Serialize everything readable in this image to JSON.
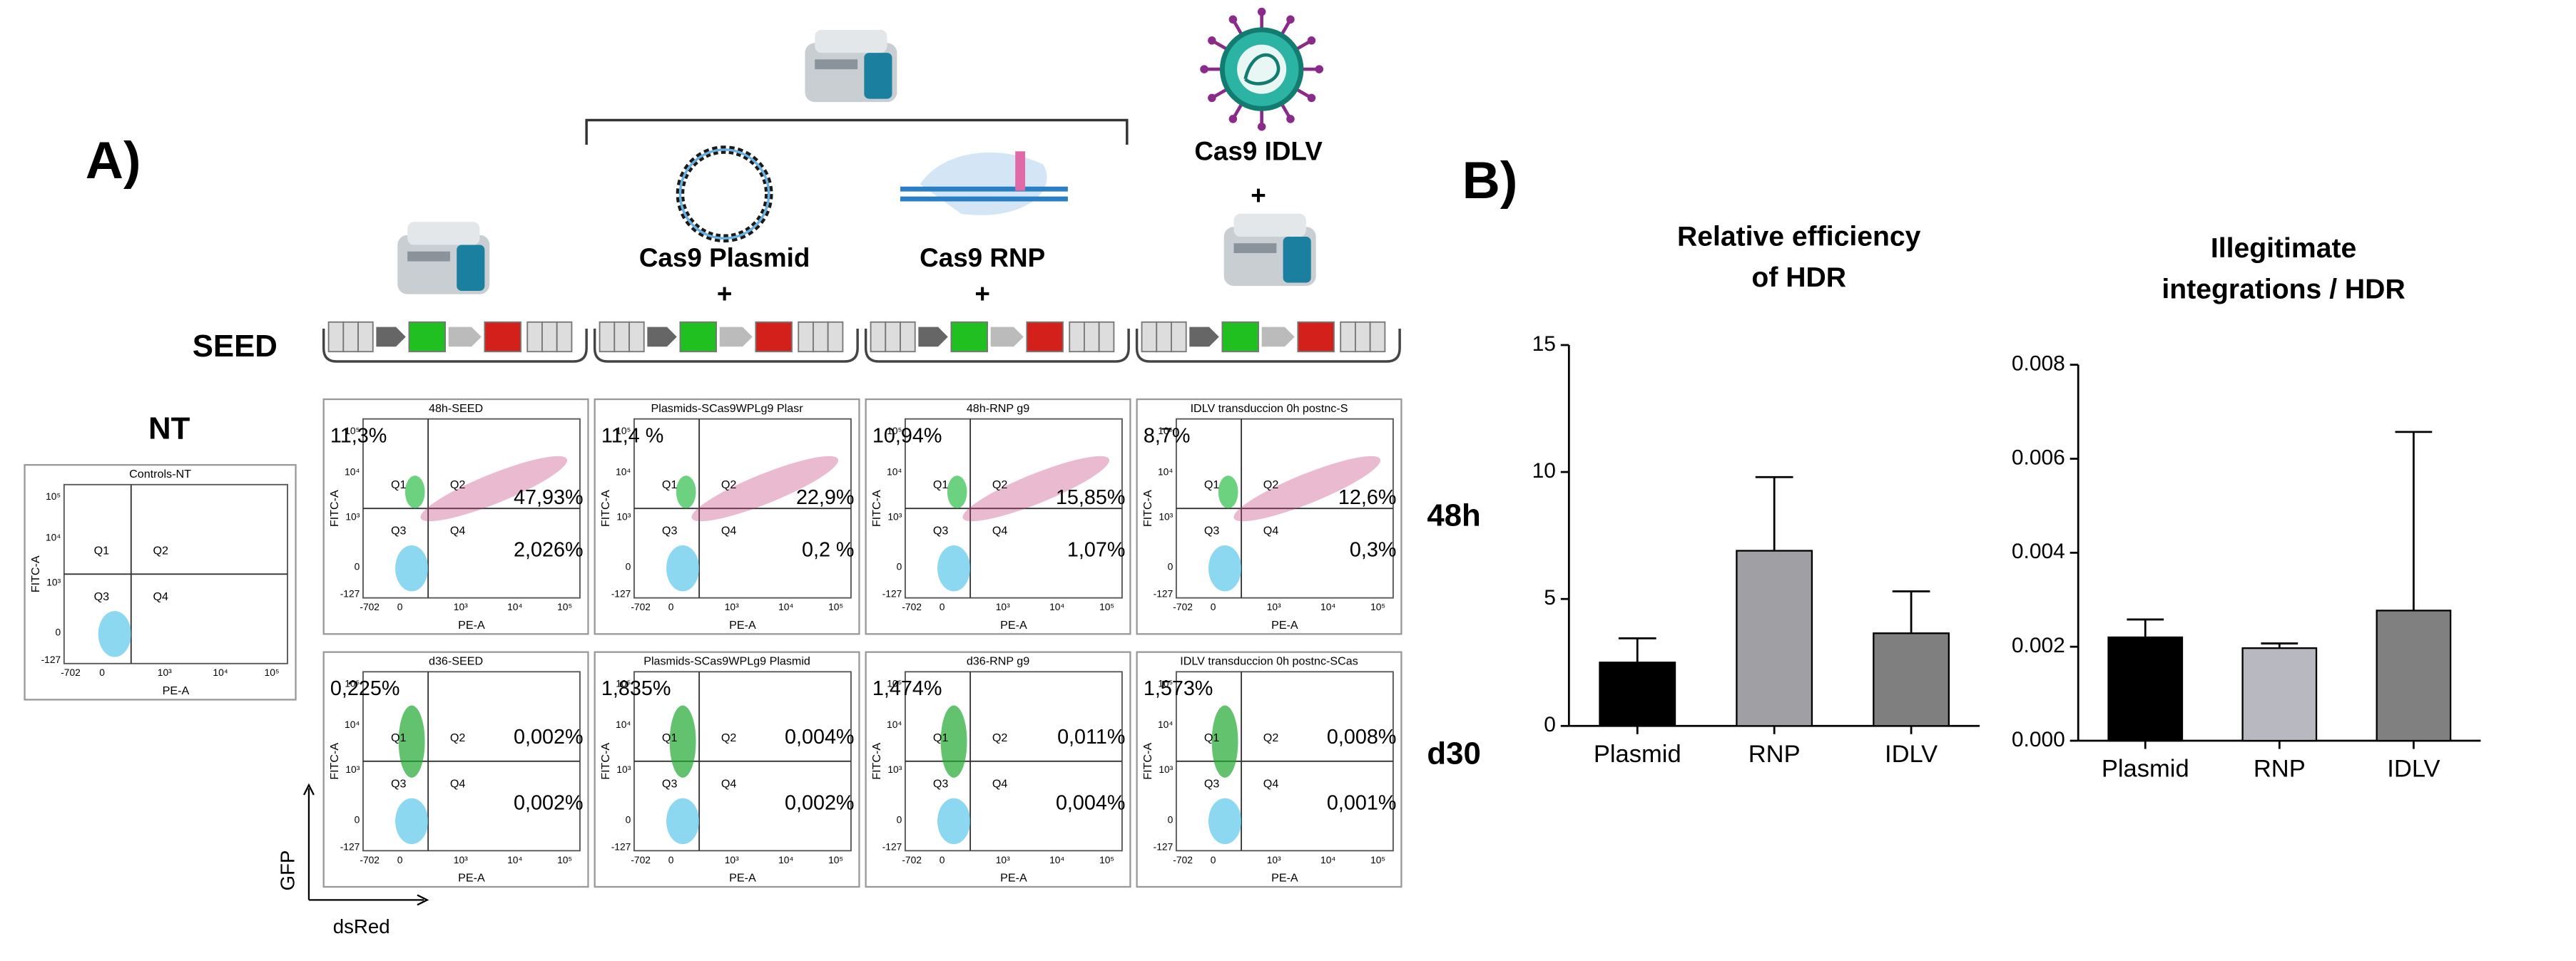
{
  "panel_a": {
    "label": "A)",
    "seed_label": "SEED",
    "nt_label": "NT",
    "conditions": [
      {
        "lines": [
          "Cas9 Plasmid",
          "+"
        ]
      },
      {
        "lines": [
          "Cas9 RNP",
          "+"
        ]
      },
      {
        "lines": [
          "Cas9 IDLV",
          "+"
        ]
      }
    ],
    "timepoints": [
      "48h",
      "d30"
    ],
    "axis_arrows": {
      "y": "GFP",
      "x": "dsRed"
    },
    "flow_axis": {
      "x_label": "PE-A",
      "y_label": "FITC-A",
      "x_ticks": [
        "-702",
        "0",
        "10³",
        "10⁴",
        "10⁵"
      ],
      "y_ticks": [
        "-127",
        "0",
        "10³",
        "10⁴",
        "10⁵"
      ],
      "quadrants": [
        "Q1",
        "Q2",
        "Q3",
        "Q4"
      ]
    },
    "nt_plot": {
      "title": "Controls-NT"
    },
    "rows": [
      {
        "plots": [
          {
            "title": "48h-SEED",
            "q1": "11,3%",
            "q2": "47,93%",
            "q4": "2,026%"
          },
          {
            "title": "Plasmids-SCas9WPLg9 Plasr",
            "q1": "11,4 %",
            "q2": "22,9%",
            "q4": "0,2 %"
          },
          {
            "title": "48h-RNP g9",
            "q1": "10,94%",
            "q2": "15,85%",
            "q4": "1,07%"
          },
          {
            "title": "IDLV transduccion 0h postnc-S",
            "q1": "8,7%",
            "q2": "12,6%",
            "q4": "0,3%"
          }
        ]
      },
      {
        "plots": [
          {
            "title": "d36-SEED",
            "q1": "0,225%",
            "q2": "0,002%",
            "q4": "0,002%"
          },
          {
            "title": "Plasmids-SCas9WPLg9 Plasmid",
            "q1": "1,835%",
            "q2": "0,004%",
            "q4": "0,002%"
          },
          {
            "title": "d36-RNP g9",
            "q1": "1,474%",
            "q2": "0,011%",
            "q4": "0,004%"
          },
          {
            "title": "IDLV transduccion 0h postnc-SCas",
            "q1": "1,573%",
            "q2": "0,008%",
            "q4": "0,001%"
          }
        ]
      }
    ]
  },
  "panel_b": {
    "label": "B)"
  },
  "chart_data": [
    {
      "type": "bar",
      "title": [
        "Relative efficiency",
        "of HDR"
      ],
      "categories": [
        "Plasmid",
        "RNP",
        "IDLV"
      ],
      "values": [
        2.5,
        6.9,
        3.65
      ],
      "errors": [
        0.95,
        2.9,
        1.65
      ],
      "colors": [
        "#000000",
        "#a0a0a4",
        "#7f7f7f"
      ],
      "ylim": [
        0,
        15
      ],
      "yticks": [
        0,
        5,
        10,
        15
      ]
    },
    {
      "type": "bar",
      "title": [
        "Illegitimate",
        "integrations / HDR"
      ],
      "categories": [
        "Plasmid",
        "RNP",
        "IDLV"
      ],
      "values": [
        0.0022,
        0.00197,
        0.00277
      ],
      "errors": [
        0.00038,
        0.0001,
        0.0038
      ],
      "colors": [
        "#000000",
        "#b8b8c0",
        "#808080"
      ],
      "ylim": [
        0,
        0.008
      ],
      "yticks": [
        {
          "value": 0,
          "label": "0.000"
        },
        {
          "value": 0.002,
          "label": "0.002"
        },
        {
          "value": 0.004,
          "label": "0.004"
        },
        {
          "value": 0.006,
          "label": "0.006"
        },
        {
          "value": 0.008,
          "label": "0.008"
        }
      ]
    }
  ]
}
